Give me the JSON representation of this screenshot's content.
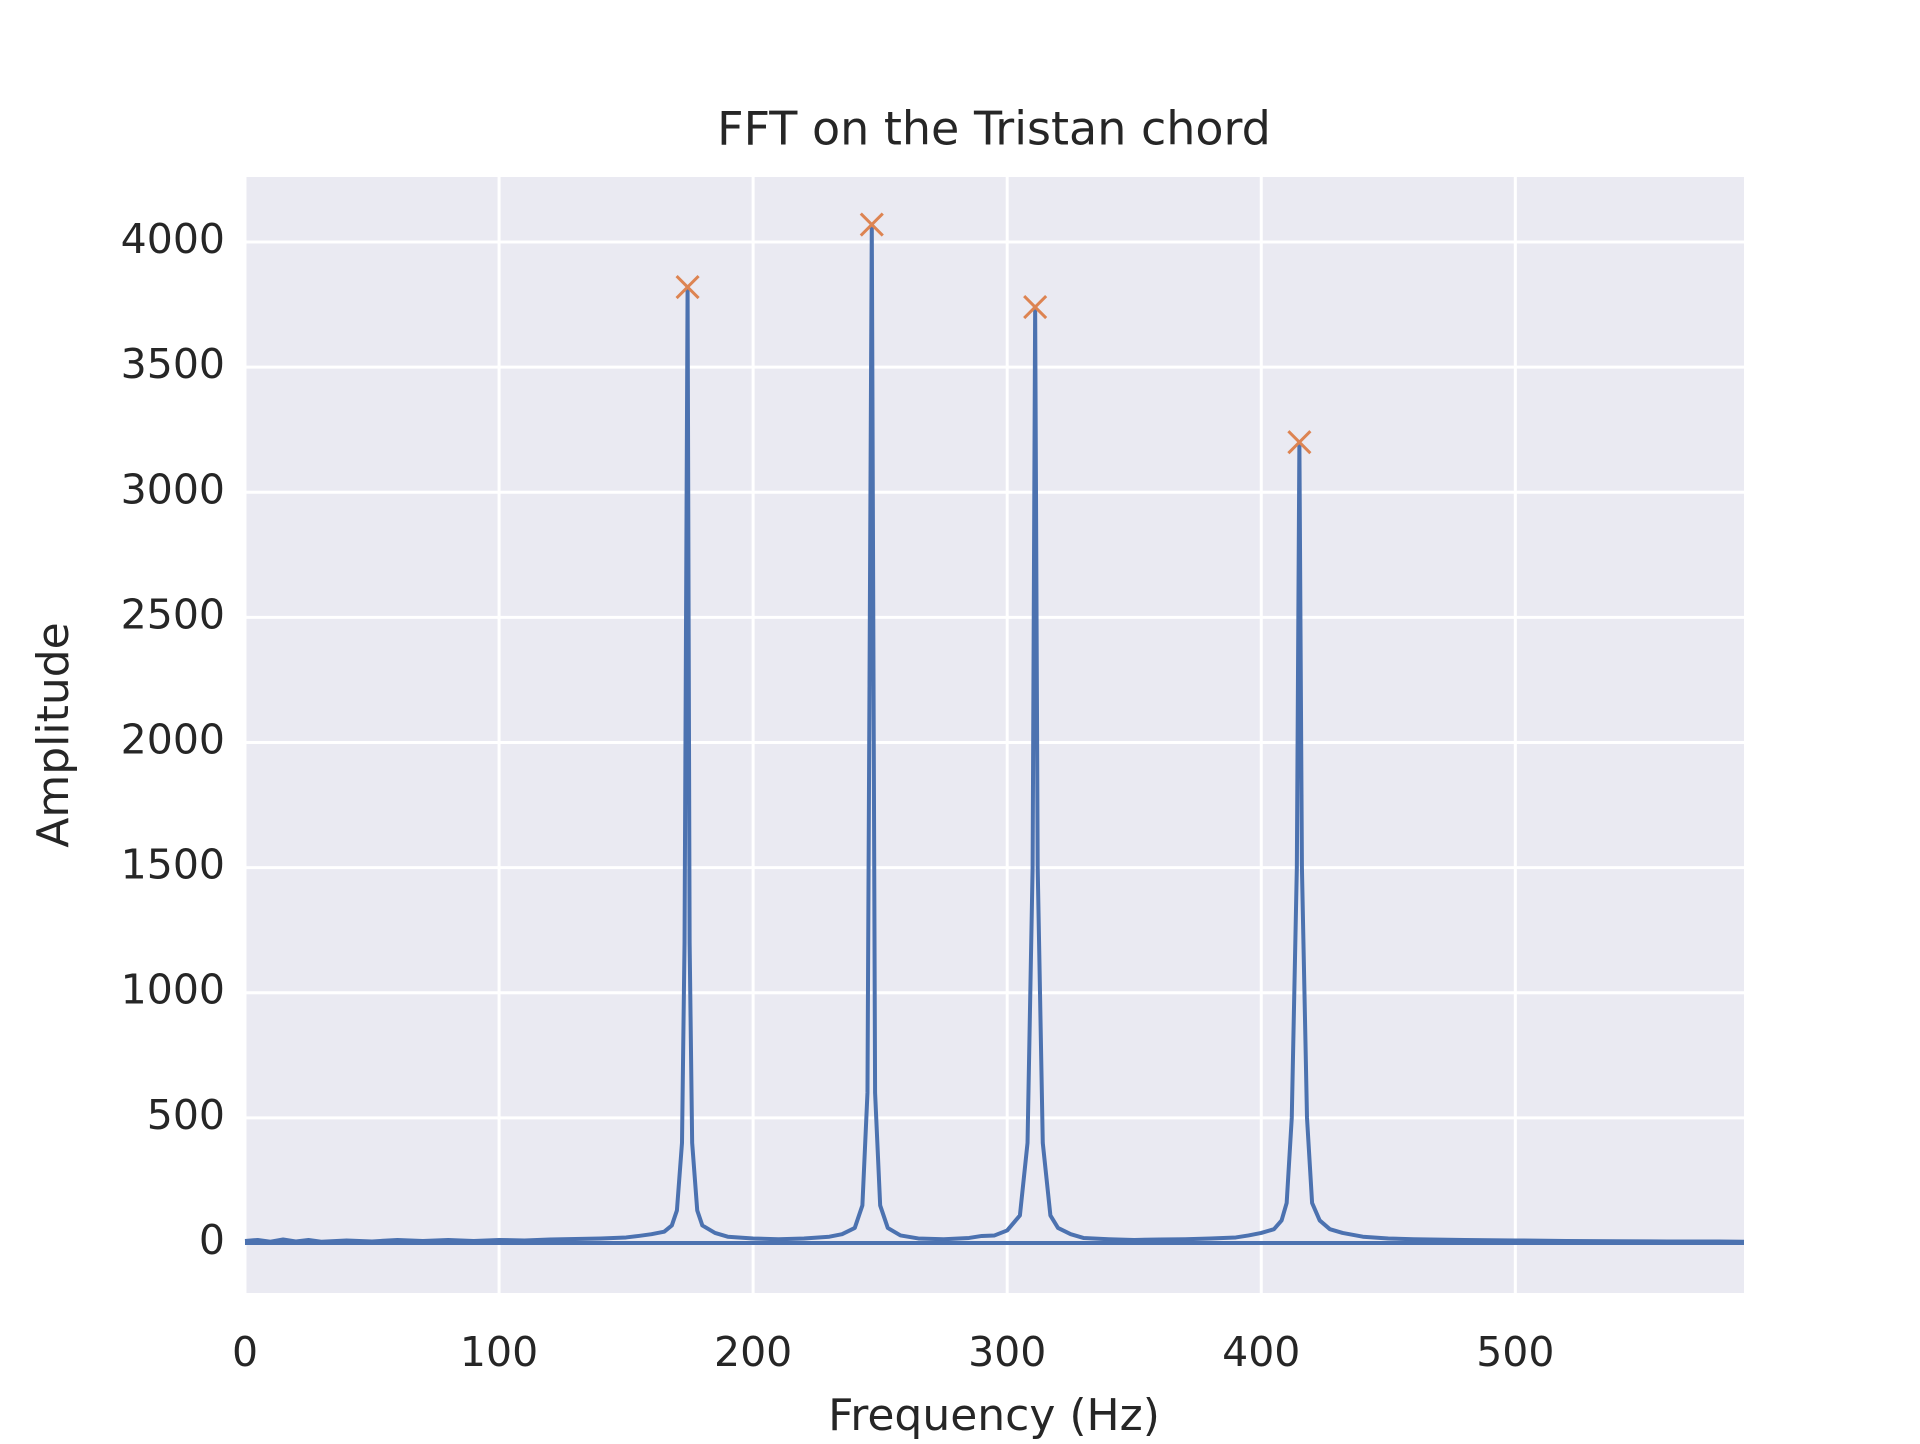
{
  "chart_data": {
    "type": "line",
    "title": "FFT on the Tristan chord",
    "xlabel": "Frequency (Hz)",
    "ylabel": "Amplitude",
    "xlim": [
      0,
      590
    ],
    "ylim": [
      -200,
      4260
    ],
    "xticks": [
      0,
      100,
      200,
      300,
      400,
      500
    ],
    "yticks": [
      0,
      500,
      1000,
      1500,
      2000,
      2500,
      3000,
      3500,
      4000
    ],
    "grid": true,
    "series": [
      {
        "color": "#4c72b0",
        "x": [
          0,
          5,
          10,
          15,
          20,
          25,
          30,
          40,
          50,
          60,
          70,
          80,
          90,
          100,
          110,
          120,
          130,
          140,
          150,
          155,
          160,
          165,
          168,
          170,
          172,
          173,
          174.2,
          175,
          176,
          178,
          180,
          185,
          190,
          200,
          210,
          220,
          230,
          235,
          240,
          243,
          245,
          246.7,
          248,
          250,
          253,
          258,
          265,
          275,
          285,
          290,
          295,
          300,
          305,
          308,
          310,
          311,
          312,
          314,
          317,
          320,
          325,
          330,
          340,
          350,
          360,
          370,
          380,
          390,
          395,
          400,
          405,
          408,
          410,
          412,
          414,
          415,
          416,
          418,
          420,
          423,
          427,
          432,
          440,
          450,
          460,
          480,
          500,
          520,
          540,
          560,
          580,
          590
        ],
        "values": [
          8,
          12,
          5,
          14,
          6,
          12,
          5,
          10,
          6,
          12,
          8,
          12,
          8,
          12,
          10,
          14,
          16,
          18,
          22,
          28,
          35,
          45,
          70,
          130,
          400,
          1200,
          3820,
          1200,
          400,
          130,
          70,
          40,
          25,
          18,
          15,
          18,
          25,
          35,
          60,
          150,
          600,
          4070,
          600,
          150,
          60,
          30,
          18,
          15,
          20,
          28,
          30,
          50,
          110,
          400,
          1500,
          3740,
          1500,
          400,
          110,
          60,
          35,
          20,
          15,
          12,
          14,
          15,
          18,
          22,
          30,
          40,
          55,
          90,
          160,
          500,
          1500,
          3200,
          1500,
          500,
          160,
          90,
          55,
          40,
          25,
          18,
          15,
          12,
          10,
          8,
          7,
          6,
          6,
          5
        ]
      },
      {
        "color": "#4c72b0",
        "x": [
          0,
          590
        ],
        "values": [
          0,
          0
        ]
      },
      {
        "color": "#dd8452",
        "marker": "x",
        "x": [
          174.2,
          246.7,
          311,
          415
        ],
        "values": [
          3820,
          4070,
          3740,
          3200
        ]
      }
    ]
  }
}
